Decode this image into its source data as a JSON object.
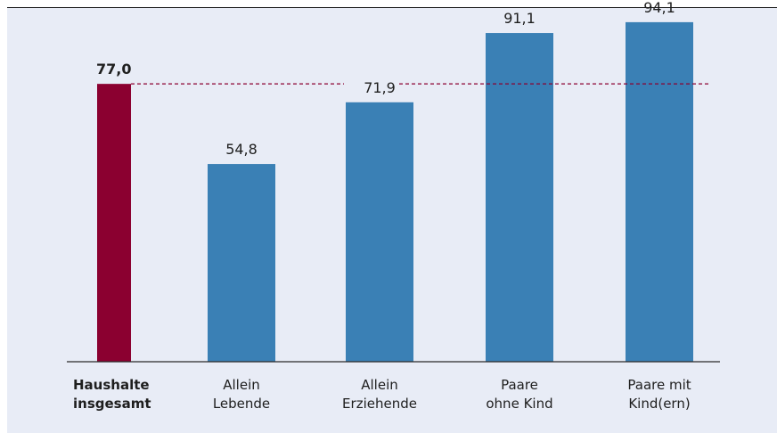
{
  "chart_data": {
    "type": "bar",
    "categories": [
      [
        "Haushalte",
        "insgesamt"
      ],
      [
        "Allein",
        "Lebende"
      ],
      [
        "Allein",
        "Erziehende"
      ],
      [
        "Paare",
        "ohne Kind"
      ],
      [
        "Paare mit",
        "Kind(ern)"
      ]
    ],
    "values": [
      77.0,
      54.8,
      71.9,
      91.1,
      94.1
    ],
    "value_labels": [
      "77,0",
      "54,8",
      "71,9",
      "91,1",
      "94,1"
    ],
    "highlight_index": 0,
    "reference_line": {
      "value": 77.0,
      "style": "dashed"
    },
    "ylim": [
      0,
      100
    ],
    "grid": false,
    "title": "",
    "xlabel": "",
    "ylabel": "",
    "colors": {
      "highlight": "#8b0030",
      "bar": "#3a80b5",
      "reference_line": "#8b0030",
      "background": "#e8ecf6"
    }
  }
}
